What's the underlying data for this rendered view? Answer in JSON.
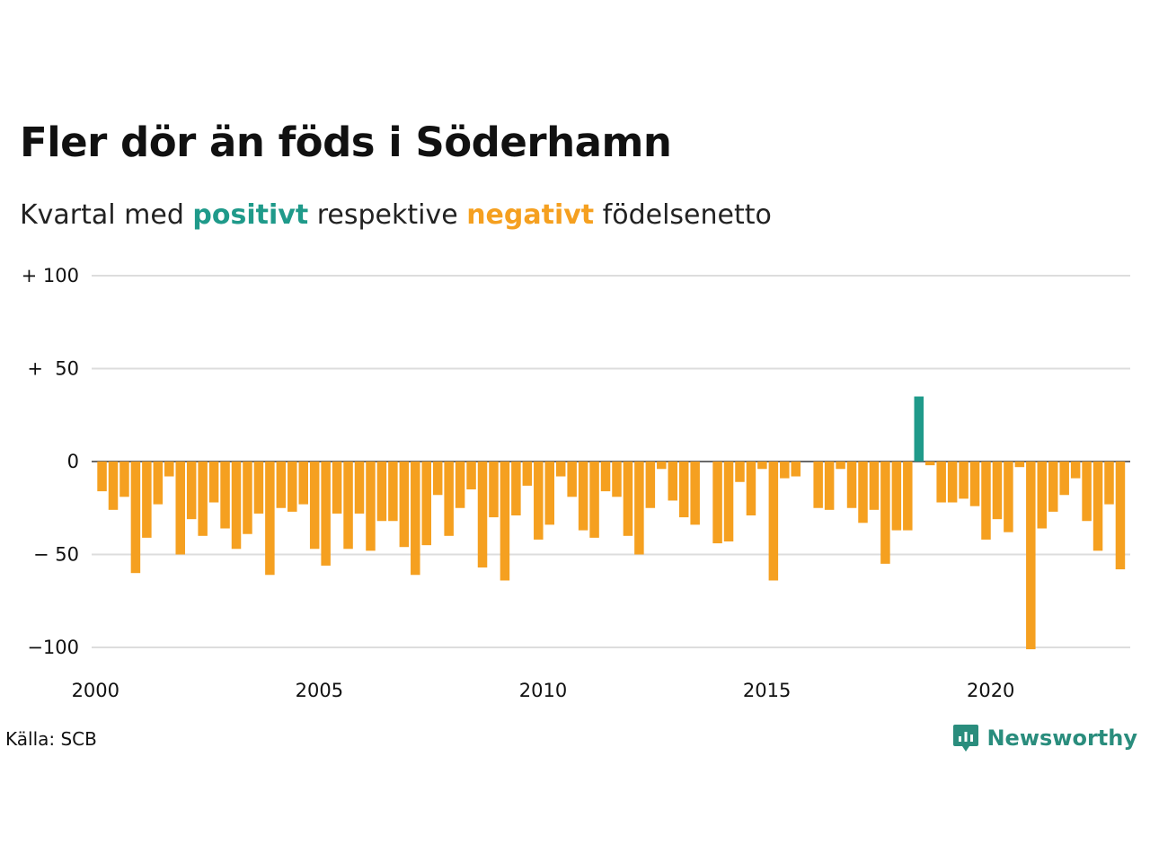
{
  "title": "Fler dör än föds i Söderhamn",
  "subtitle": {
    "prefix": "Kvartal med ",
    "positive_word": "positivt",
    "middle": " respektive ",
    "negative_word": "negativt",
    "suffix": " födelsenetto"
  },
  "source": "Källa: SCB",
  "brand": {
    "name": "Newsworthy",
    "icon": "newsworthy-logo-icon"
  },
  "colors": {
    "positive": "#1f9a8a",
    "negative": "#f5a020",
    "grid": "#dddddd",
    "brand": "#2a8d7d"
  },
  "chart_data": {
    "type": "bar",
    "x_start": "2000 Q1",
    "x_step": "quarter",
    "ylim": [
      -100,
      100
    ],
    "y_ticks": [
      {
        "value": 100,
        "label": "+ 100"
      },
      {
        "value": 50,
        "label": "+  50"
      },
      {
        "value": 0,
        "label": "0"
      },
      {
        "value": -50,
        "label": "− 50"
      },
      {
        "value": -100,
        "label": "−100"
      }
    ],
    "x_ticks": [
      "2000",
      "2005",
      "2010",
      "2015",
      "2020"
    ],
    "grid": true,
    "values": [
      -16,
      -26,
      -19,
      -60,
      -41,
      -23,
      -8,
      -50,
      -31,
      -40,
      -22,
      -36,
      -47,
      -39,
      -28,
      -61,
      -25,
      -27,
      -23,
      -47,
      -56,
      -28,
      -47,
      -28,
      -48,
      -32,
      -32,
      -46,
      -61,
      -45,
      -18,
      -40,
      -25,
      -15,
      -57,
      -30,
      -64,
      -29,
      -13,
      -42,
      -34,
      -8,
      -19,
      -37,
      -41,
      -16,
      -19,
      -40,
      -50,
      -25,
      -4,
      -21,
      -30,
      -34,
      0,
      -44,
      -43,
      -11,
      -29,
      -4,
      -64,
      -9,
      -8,
      0,
      -25,
      -26,
      -4,
      -25,
      -33,
      -26,
      -55,
      -37,
      -37,
      35,
      -2,
      -22,
      -22,
      -20,
      -24,
      -42,
      -31,
      -38,
      -3,
      -101,
      -36,
      -27,
      -18,
      -9,
      -32,
      -48,
      -23,
      -58
    ]
  }
}
